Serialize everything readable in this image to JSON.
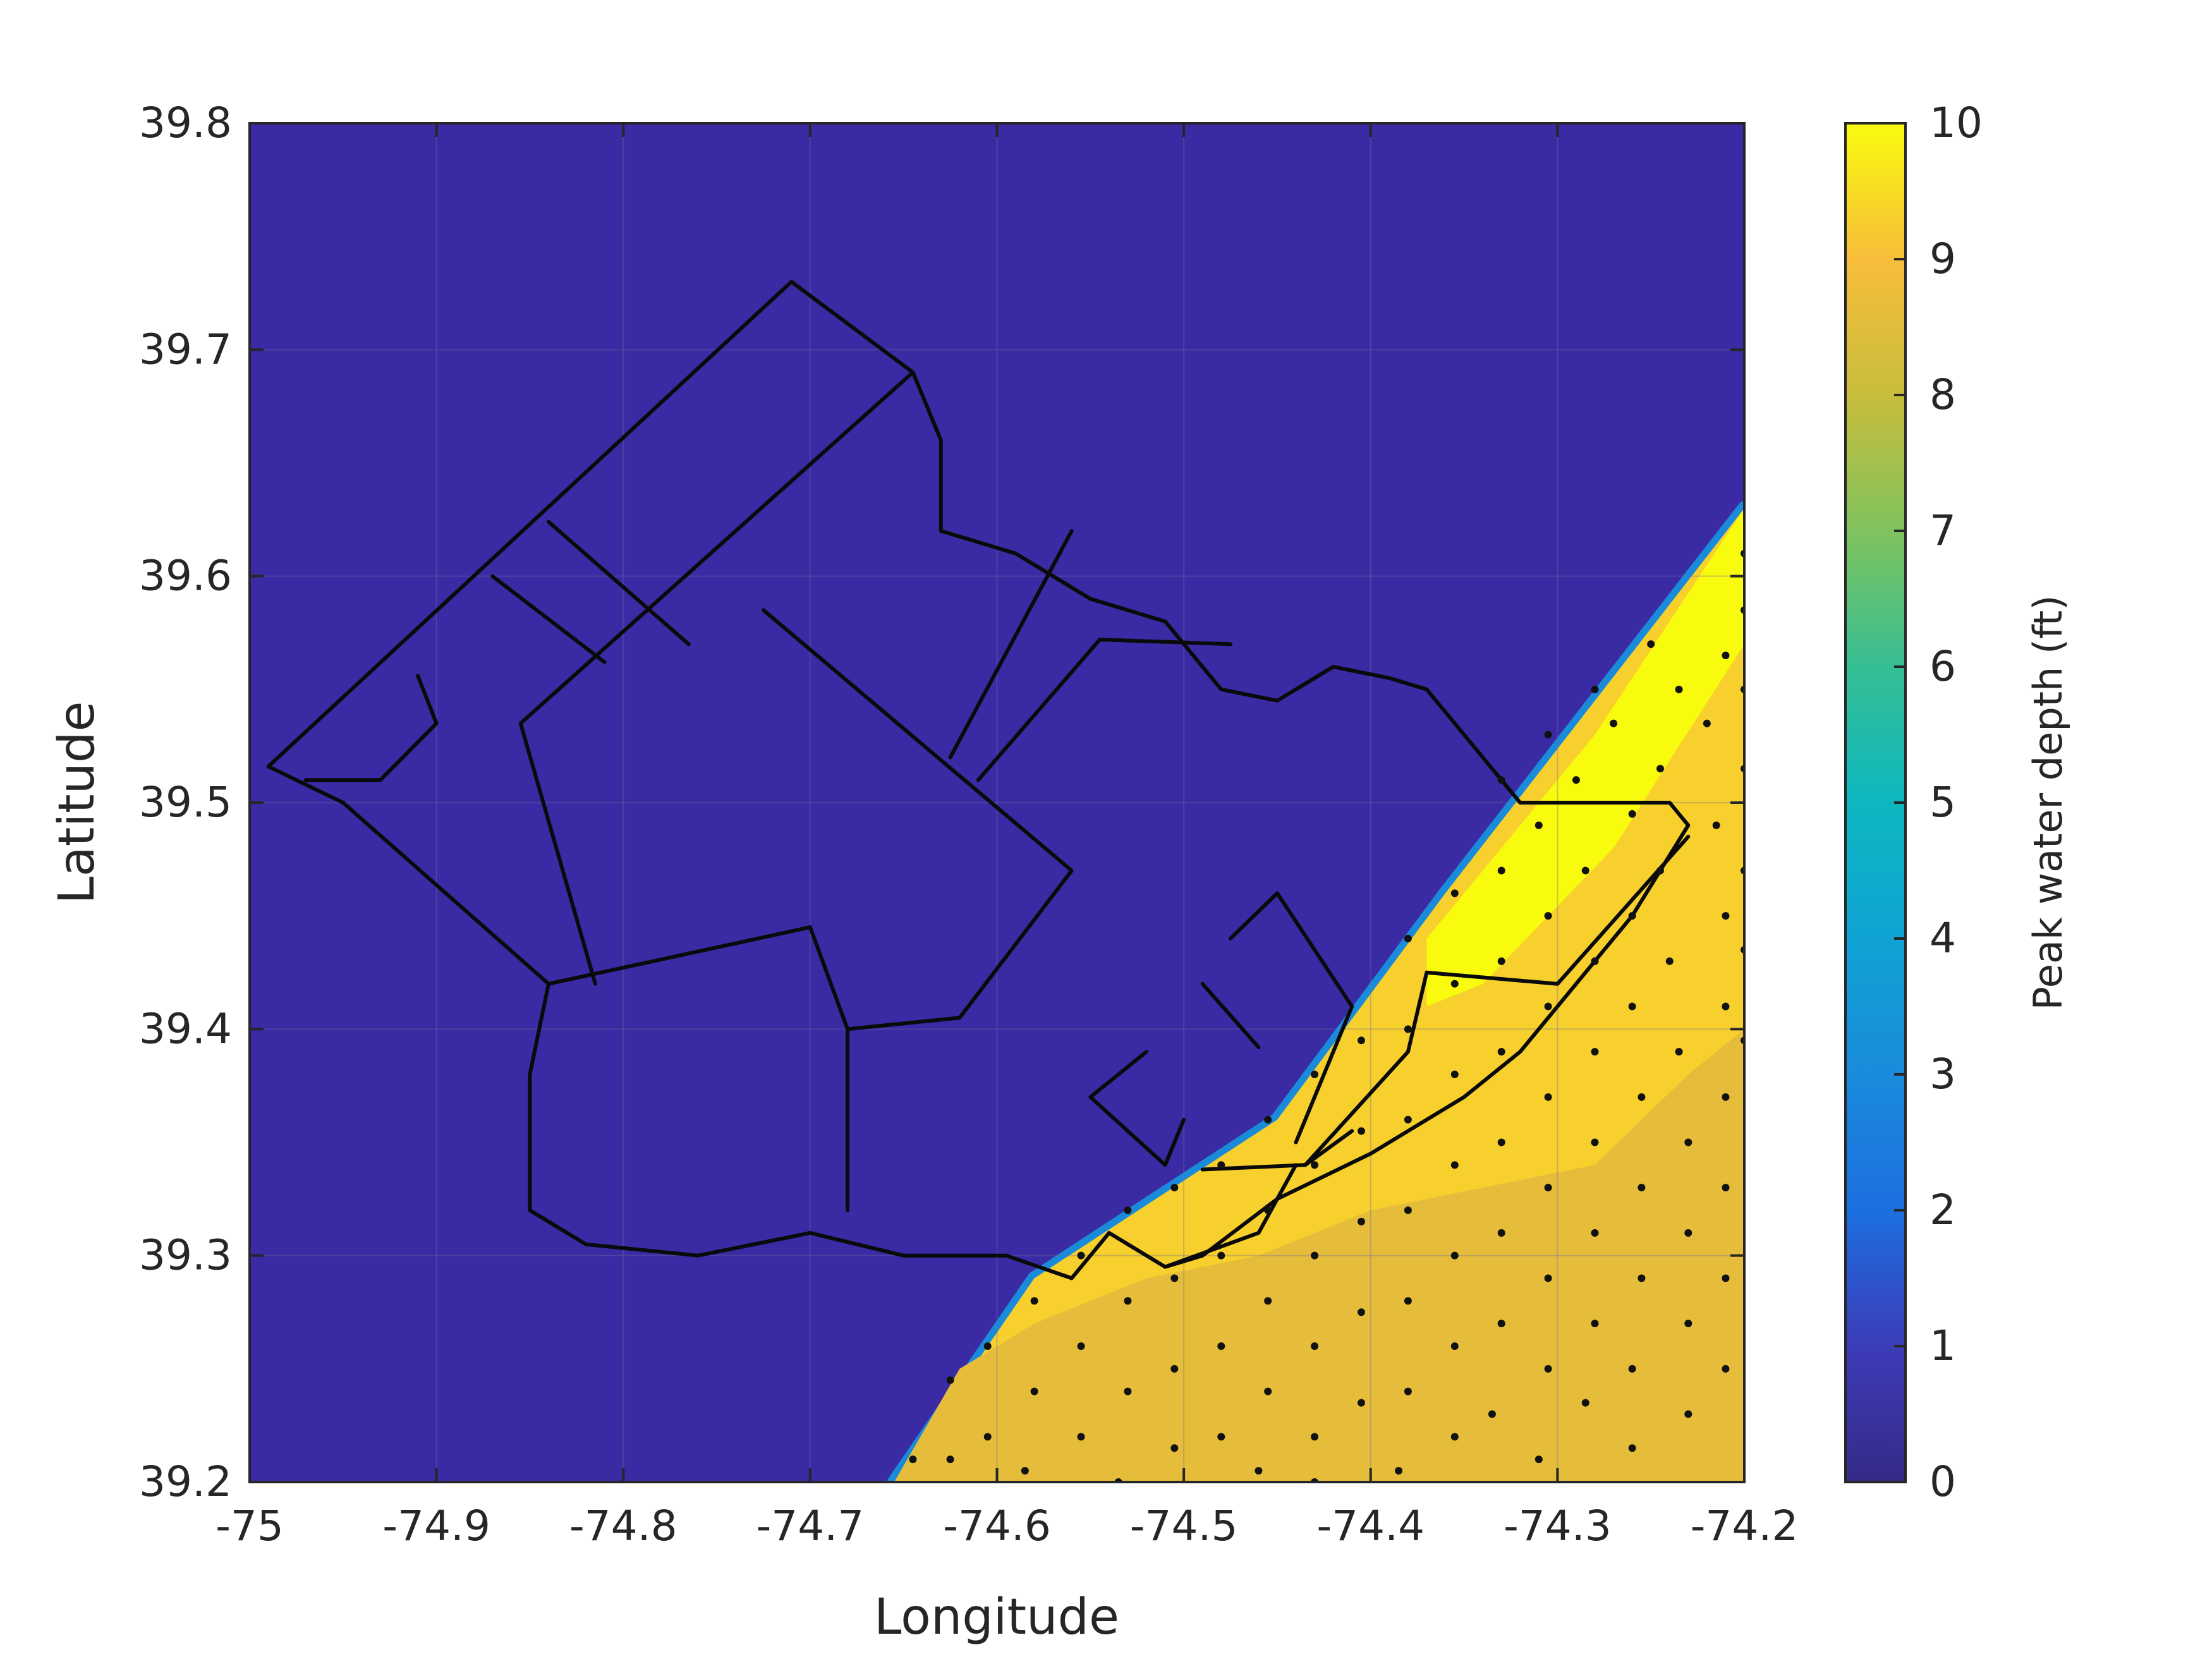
{
  "chart_data": {
    "type": "heatmap",
    "title": "",
    "xlabel": "Longitude",
    "ylabel": "Latitude",
    "xlim": [
      -75,
      -74.2
    ],
    "ylim": [
      39.2,
      39.8
    ],
    "x_ticks": [
      -75,
      -74.9,
      -74.8,
      -74.7,
      -74.6,
      -74.5,
      -74.4,
      -74.3,
      -74.2
    ],
    "x_tick_labels": [
      "-75",
      "-74.9",
      "-74.8",
      "-74.7",
      "-74.6",
      "-74.5",
      "-74.4",
      "-74.3",
      "-74.2"
    ],
    "y_ticks": [
      39.2,
      39.3,
      39.4,
      39.5,
      39.6,
      39.7,
      39.8
    ],
    "y_tick_labels": [
      "39.2",
      "39.3",
      "39.4",
      "39.5",
      "39.6",
      "39.7",
      "39.8"
    ],
    "grid": true,
    "colorbar": {
      "label": "Peak water depth (ft)",
      "range": [
        0,
        10
      ],
      "ticks": [
        0,
        1,
        2,
        3,
        4,
        5,
        6,
        7,
        8,
        9,
        10
      ],
      "tick_labels": [
        "0",
        "1",
        "2",
        "3",
        "4",
        "5",
        "6",
        "7",
        "8",
        "9",
        "10"
      ],
      "colormap": "parula"
    },
    "background_value": 0,
    "flood_region": {
      "boundary": [
        [
          -74.655,
          39.2
        ],
        [
          -74.2,
          39.2
        ],
        [
          -74.2,
          39.63
        ],
        [
          -74.36,
          39.46
        ],
        [
          -74.45,
          39.36
        ],
        [
          -74.58,
          39.29
        ]
      ],
      "zones": [
        {
          "depth": 10.0,
          "polygon": [
            [
              -74.2,
              39.63
            ],
            [
              -74.2,
              39.57
            ],
            [
              -74.27,
              39.48
            ],
            [
              -74.34,
              39.42
            ],
            [
              -74.37,
              39.41
            ],
            [
              -74.37,
              39.44
            ],
            [
              -74.33,
              39.48
            ],
            [
              -74.28,
              39.53
            ],
            [
              -74.24,
              39.58
            ]
          ]
        },
        {
          "depth": 8.6,
          "polygon": [
            [
              -74.655,
              39.2
            ],
            [
              -74.2,
              39.2
            ],
            [
              -74.2,
              39.4
            ],
            [
              -74.23,
              39.38
            ],
            [
              -74.28,
              39.34
            ],
            [
              -74.34,
              39.33
            ],
            [
              -74.4,
              39.32
            ],
            [
              -74.46,
              39.3
            ],
            [
              -74.52,
              39.29
            ],
            [
              -74.58,
              39.27
            ],
            [
              -74.62,
              39.25
            ]
          ]
        }
      ],
      "default_depth": 9.3
    },
    "boundaries": [
      [
        [
          -74.99,
          39.516
        ],
        [
          -74.71,
          39.73
        ],
        [
          -74.645,
          39.69
        ],
        [
          -74.63,
          39.66
        ],
        [
          -74.63,
          39.62
        ],
        [
          -74.59,
          39.61
        ],
        [
          -74.55,
          39.59
        ],
        [
          -74.51,
          39.58
        ],
        [
          -74.48,
          39.55
        ],
        [
          -74.45,
          39.545
        ],
        [
          -74.42,
          39.56
        ],
        [
          -74.39,
          39.555
        ],
        [
          -74.37,
          39.55
        ],
        [
          -74.35,
          39.53
        ],
        [
          -74.32,
          39.5
        ],
        [
          -74.24,
          39.5
        ],
        [
          -74.23,
          39.49
        ],
        [
          -74.26,
          39.45
        ],
        [
          -74.28,
          39.43
        ],
        [
          -74.32,
          39.39
        ],
        [
          -74.35,
          39.37
        ],
        [
          -74.4,
          39.345
        ],
        [
          -74.45,
          39.325
        ],
        [
          -74.49,
          39.3
        ],
        [
          -74.51,
          39.295
        ],
        [
          -74.54,
          39.31
        ],
        [
          -74.56,
          39.29
        ],
        [
          -74.595,
          39.3
        ],
        [
          -74.65,
          39.3
        ],
        [
          -74.7,
          39.31
        ],
        [
          -74.76,
          39.3
        ],
        [
          -74.82,
          39.305
        ],
        [
          -74.85,
          39.32
        ],
        [
          -74.85,
          39.38
        ],
        [
          -74.84,
          39.42
        ],
        [
          -74.95,
          39.5
        ],
        [
          -74.99,
          39.516
        ]
      ],
      [
        [
          -74.645,
          39.69
        ],
        [
          -74.855,
          39.535
        ],
        [
          -74.815,
          39.42
        ]
      ],
      [
        [
          -74.84,
          39.624
        ],
        [
          -74.765,
          39.57
        ]
      ],
      [
        [
          -74.87,
          39.6
        ],
        [
          -74.81,
          39.562
        ]
      ],
      [
        [
          -74.725,
          39.585
        ],
        [
          -74.56,
          39.47
        ],
        [
          -74.62,
          39.405
        ],
        [
          -74.68,
          39.4
        ]
      ],
      [
        [
          -74.56,
          39.62
        ],
        [
          -74.625,
          39.52
        ]
      ],
      [
        [
          -74.545,
          39.572
        ],
        [
          -74.61,
          39.51
        ]
      ],
      [
        [
          -74.545,
          39.572
        ],
        [
          -74.475,
          39.57
        ]
      ],
      [
        [
          -74.84,
          39.42
        ],
        [
          -74.7,
          39.445
        ],
        [
          -74.68,
          39.4
        ],
        [
          -74.68,
          39.32
        ]
      ],
      [
        [
          -74.97,
          39.51
        ],
        [
          -74.93,
          39.51
        ],
        [
          -74.9,
          39.535
        ],
        [
          -74.91,
          39.556
        ]
      ],
      [
        [
          -74.475,
          39.44
        ],
        [
          -74.45,
          39.46
        ],
        [
          -74.41,
          39.41
        ],
        [
          -74.44,
          39.35
        ]
      ],
      [
        [
          -74.46,
          39.392
        ],
        [
          -74.49,
          39.42
        ]
      ],
      [
        [
          -74.52,
          39.39
        ],
        [
          -74.55,
          39.37
        ],
        [
          -74.51,
          39.34
        ],
        [
          -74.5,
          39.36
        ]
      ],
      [
        [
          -74.49,
          39.338
        ],
        [
          -74.435,
          39.34
        ],
        [
          -74.41,
          39.355
        ]
      ],
      [
        [
          -74.44,
          39.34
        ],
        [
          -74.46,
          39.31
        ],
        [
          -74.51,
          39.295
        ]
      ],
      [
        [
          -74.435,
          39.34
        ],
        [
          -74.38,
          39.39
        ],
        [
          -74.37,
          39.425
        ],
        [
          -74.3,
          39.42
        ],
        [
          -74.23,
          39.485
        ]
      ]
    ],
    "sample_points": [
      [
        -74.2,
        39.61
      ],
      [
        -74.2,
        39.585
      ],
      [
        -74.2,
        39.55
      ],
      [
        -74.2,
        39.515
      ],
      [
        -74.2,
        39.47
      ],
      [
        -74.2,
        39.435
      ],
      [
        -74.2,
        39.395
      ],
      [
        -74.21,
        39.565
      ],
      [
        -74.22,
        39.535
      ],
      [
        -74.215,
        39.49
      ],
      [
        -74.21,
        39.45
      ],
      [
        -74.21,
        39.41
      ],
      [
        -74.21,
        39.37
      ],
      [
        -74.21,
        39.33
      ],
      [
        -74.21,
        39.29
      ],
      [
        -74.21,
        39.25
      ],
      [
        -74.235,
        39.55
      ],
      [
        -74.245,
        39.515
      ],
      [
        -74.245,
        39.47
      ],
      [
        -74.24,
        39.43
      ],
      [
        -74.235,
        39.39
      ],
      [
        -74.23,
        39.35
      ],
      [
        -74.23,
        39.31
      ],
      [
        -74.23,
        39.27
      ],
      [
        -74.23,
        39.23
      ],
      [
        -74.25,
        39.57
      ],
      [
        -74.27,
        39.535
      ],
      [
        -74.26,
        39.495
      ],
      [
        -74.26,
        39.45
      ],
      [
        -74.26,
        39.41
      ],
      [
        -74.255,
        39.37
      ],
      [
        -74.255,
        39.33
      ],
      [
        -74.255,
        39.29
      ],
      [
        -74.26,
        39.25
      ],
      [
        -74.26,
        39.215
      ],
      [
        -74.28,
        39.55
      ],
      [
        -74.29,
        39.51
      ],
      [
        -74.285,
        39.47
      ],
      [
        -74.28,
        39.43
      ],
      [
        -74.28,
        39.39
      ],
      [
        -74.28,
        39.35
      ],
      [
        -74.28,
        39.31
      ],
      [
        -74.28,
        39.27
      ],
      [
        -74.285,
        39.235
      ],
      [
        -74.305,
        39.53
      ],
      [
        -74.31,
        39.49
      ],
      [
        -74.305,
        39.45
      ],
      [
        -74.305,
        39.41
      ],
      [
        -74.305,
        39.37
      ],
      [
        -74.305,
        39.33
      ],
      [
        -74.305,
        39.29
      ],
      [
        -74.305,
        39.25
      ],
      [
        -74.31,
        39.21
      ],
      [
        -74.33,
        39.51
      ],
      [
        -74.33,
        39.47
      ],
      [
        -74.33,
        39.43
      ],
      [
        -74.33,
        39.39
      ],
      [
        -74.33,
        39.35
      ],
      [
        -74.33,
        39.31
      ],
      [
        -74.33,
        39.27
      ],
      [
        -74.335,
        39.23
      ],
      [
        -74.355,
        39.46
      ],
      [
        -74.355,
        39.42
      ],
      [
        -74.355,
        39.38
      ],
      [
        -74.355,
        39.34
      ],
      [
        -74.355,
        39.3
      ],
      [
        -74.355,
        39.26
      ],
      [
        -74.355,
        39.22
      ],
      [
        -74.38,
        39.44
      ],
      [
        -74.38,
        39.4
      ],
      [
        -74.38,
        39.36
      ],
      [
        -74.38,
        39.32
      ],
      [
        -74.38,
        39.28
      ],
      [
        -74.38,
        39.24
      ],
      [
        -74.385,
        39.205
      ],
      [
        -74.405,
        39.395
      ],
      [
        -74.405,
        39.355
      ],
      [
        -74.405,
        39.315
      ],
      [
        -74.405,
        39.275
      ],
      [
        -74.405,
        39.235
      ],
      [
        -74.43,
        39.38
      ],
      [
        -74.43,
        39.34
      ],
      [
        -74.43,
        39.3
      ],
      [
        -74.43,
        39.26
      ],
      [
        -74.43,
        39.22
      ],
      [
        -74.43,
        39.2
      ],
      [
        -74.455,
        39.36
      ],
      [
        -74.455,
        39.32
      ],
      [
        -74.455,
        39.28
      ],
      [
        -74.455,
        39.24
      ],
      [
        -74.46,
        39.205
      ],
      [
        -74.48,
        39.34
      ],
      [
        -74.48,
        39.3
      ],
      [
        -74.48,
        39.26
      ],
      [
        -74.48,
        39.22
      ],
      [
        -74.505,
        39.33
      ],
      [
        -74.505,
        39.29
      ],
      [
        -74.505,
        39.25
      ],
      [
        -74.505,
        39.215
      ],
      [
        -74.53,
        39.32
      ],
      [
        -74.53,
        39.28
      ],
      [
        -74.53,
        39.24
      ],
      [
        -74.535,
        39.2
      ],
      [
        -74.555,
        39.3
      ],
      [
        -74.555,
        39.26
      ],
      [
        -74.555,
        39.22
      ],
      [
        -74.58,
        39.28
      ],
      [
        -74.58,
        39.24
      ],
      [
        -74.585,
        39.205
      ],
      [
        -74.605,
        39.26
      ],
      [
        -74.605,
        39.22
      ],
      [
        -74.625,
        39.245
      ],
      [
        -74.625,
        39.21
      ],
      [
        -74.645,
        39.21
      ]
    ]
  }
}
